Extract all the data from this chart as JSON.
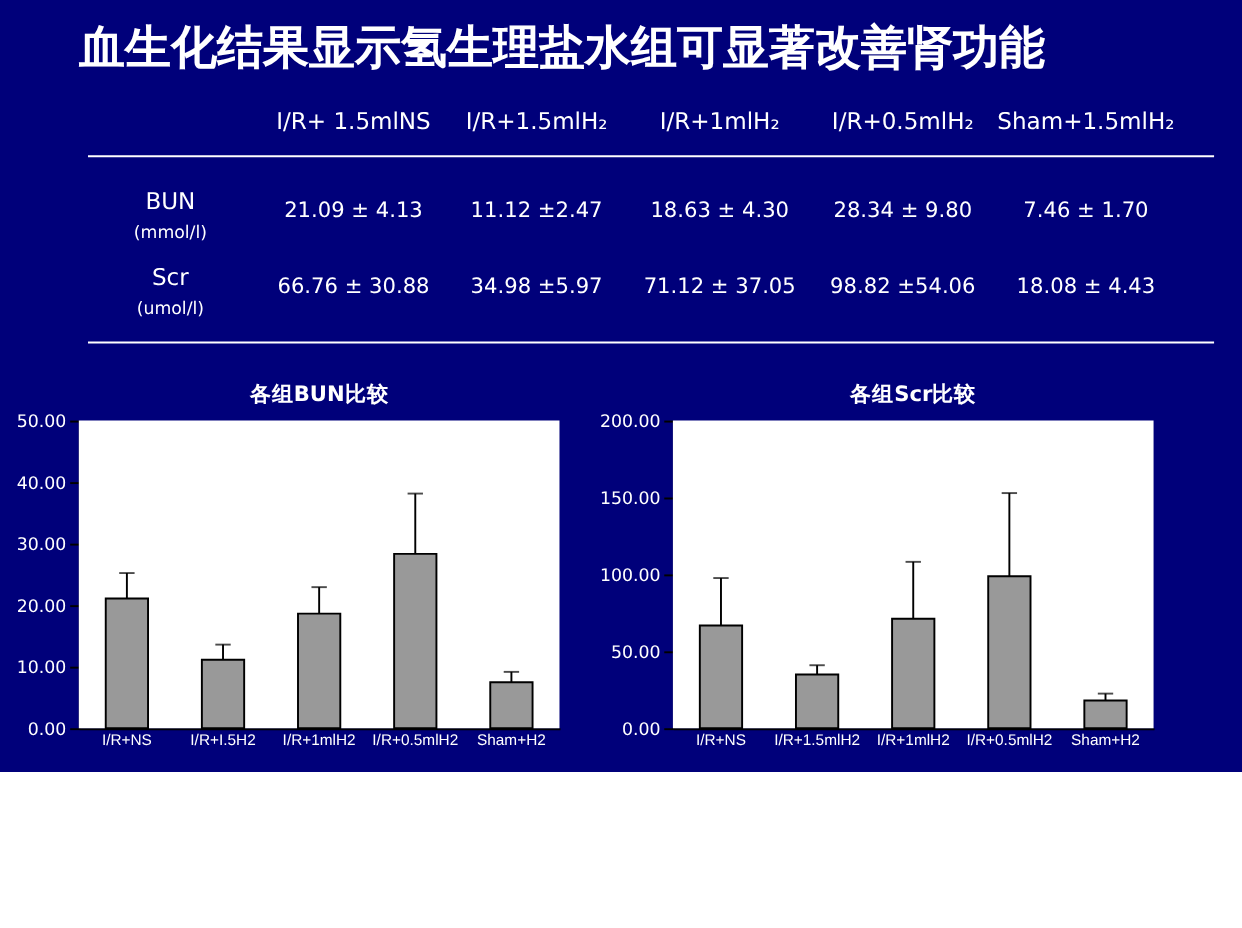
{
  "chart_data": [
    {
      "type": "other",
      "title": "血生化结果显示氢生理盐水组可显著改善肾功能",
      "annotations": [
        "I/R+ 1.5mlNS",
        "I/R+1.5mlH₂",
        "I/R+1mlH₂",
        "I/R+0.5mlH₂",
        "Sham+1.5mlH₂",
        "BUN",
        "(mmol/l)",
        "21.09 ± 4.13",
        "11.12 ±2.47",
        "18.63 ± 4.30",
        "28.34 ± 9.80",
        "7.46 ± 1.70",
        "Scr",
        "(umol/l)",
        "66.76 ± 30.88",
        "34.98 ±5.97",
        "71.12 ± 37.05",
        "98.82 ±54.06",
        "18.08 ± 4.43"
      ]
    },
    {
      "type": "bar",
      "title": "各组BUN比较",
      "categories": [
        "I/R+NS",
        "I/R+I.5H2",
        "I/R+1mlH2",
        "I/R+0.5mlH2",
        "Sham+H2"
      ],
      "values": [
        21.09,
        11.12,
        18.63,
        28.34,
        7.46
      ],
      "color": "#999999",
      "errors": [
        [
          21.09,
          25.22
        ],
        [
          11.12,
          13.59
        ],
        [
          18.63,
          22.93
        ],
        [
          28.34,
          38.14
        ],
        [
          7.46,
          9.16
        ]
      ],
      "ylim": [
        0,
        50
      ],
      "yticks": [
        {
          "value": 0,
          "label": "0.00"
        },
        {
          "value": 10,
          "label": "10.00"
        },
        {
          "value": 20,
          "label": "20.00"
        },
        {
          "value": 30,
          "label": "30.00"
        },
        {
          "value": 40,
          "label": "40.00"
        },
        {
          "value": 50,
          "label": "50.00"
        }
      ],
      "grid": false
    },
    {
      "type": "bar",
      "title": "各组Scr比较",
      "categories": [
        "I/R+NS",
        "I/R+1.5mlH2",
        "I/R+1mlH2",
        "I/R+0.5mlH2",
        "Sham+H2"
      ],
      "values": [
        66.76,
        34.98,
        71.12,
        98.82,
        18.08
      ],
      "color": "#999999",
      "errors": [
        [
          66.76,
          97.64
        ],
        [
          34.98,
          40.95
        ],
        [
          71.12,
          108.17
        ],
        [
          98.82,
          152.88
        ],
        [
          18.08,
          22.51
        ]
      ],
      "ylim": [
        0,
        200
      ],
      "yticks": [
        {
          "value": 0,
          "label": "0.00"
        },
        {
          "value": 50,
          "label": "50.00"
        },
        {
          "value": 100,
          "label": "100.00"
        },
        {
          "value": 150,
          "label": "150.00"
        },
        {
          "value": 200,
          "label": "200.00"
        }
      ],
      "grid": false
    }
  ]
}
